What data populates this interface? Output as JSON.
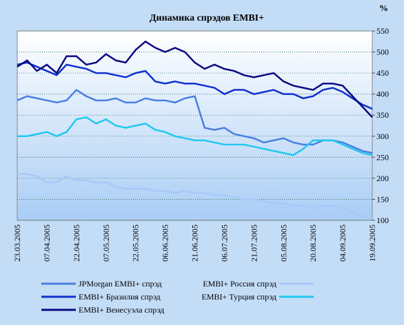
{
  "chart_data": {
    "type": "line",
    "title": "Динамика спрэдов EMBI+",
    "y_axis_label": "%",
    "categories": [
      "23.03.2005",
      null,
      null,
      "07.04.2005",
      null,
      null,
      "22.04.2005",
      null,
      null,
      "07.05.2005",
      null,
      null,
      "22.05.2005",
      null,
      null,
      "06.06.2005",
      null,
      null,
      "21.06.2005",
      null,
      null,
      "06.07.2005",
      null,
      null,
      "21.07.2005",
      null,
      null,
      "05.08.2005",
      null,
      null,
      "20.08.2005",
      null,
      null,
      "04.09.2005",
      null,
      null,
      "19.09.2005"
    ],
    "series": [
      {
        "name": "JPMorgan EMBI+ спрэд",
        "color": "#4a7fe0",
        "values": [
          385,
          395,
          390,
          385,
          380,
          385,
          410,
          395,
          385,
          385,
          390,
          380,
          380,
          390,
          385,
          385,
          380,
          390,
          395,
          320,
          315,
          320,
          305,
          300,
          295,
          285,
          290,
          295,
          285,
          280,
          280,
          290,
          290,
          285,
          275,
          265,
          260
        ]
      },
      {
        "name": "EMBI+ Россия спрэд",
        "color": "#a8c8f8",
        "values": [
          210,
          210,
          205,
          190,
          190,
          205,
          195,
          195,
          190,
          190,
          180,
          175,
          175,
          175,
          170,
          170,
          165,
          170,
          165,
          165,
          160,
          160,
          155,
          150,
          150,
          145,
          140,
          140,
          135,
          135,
          130,
          135,
          135,
          130,
          120,
          110,
          105
        ]
      },
      {
        "name": "EMBI+ Бразилия спрэд",
        "color": "#1030d0",
        "values": [
          470,
          475,
          465,
          455,
          445,
          470,
          465,
          460,
          450,
          450,
          445,
          440,
          450,
          455,
          430,
          425,
          430,
          425,
          425,
          420,
          415,
          400,
          410,
          410,
          400,
          405,
          410,
          400,
          400,
          390,
          395,
          410,
          415,
          405,
          390,
          375,
          365
        ]
      },
      {
        "name": "EMBI+ Турция спрэд",
        "color": "#20c8f0",
        "values": [
          300,
          300,
          305,
          310,
          300,
          310,
          340,
          345,
          330,
          340,
          325,
          320,
          325,
          330,
          315,
          310,
          300,
          295,
          290,
          290,
          285,
          280,
          280,
          280,
          275,
          270,
          265,
          260,
          255,
          270,
          290,
          290,
          290,
          280,
          270,
          260,
          255
        ]
      },
      {
        "name": "EMBI+ Венесуэла спрэд",
        "color": "#0a0a80",
        "values": [
          465,
          480,
          455,
          470,
          450,
          490,
          490,
          470,
          475,
          495,
          480,
          475,
          505,
          525,
          510,
          500,
          510,
          500,
          475,
          460,
          470,
          460,
          455,
          445,
          440,
          445,
          450,
          430,
          420,
          415,
          410,
          425,
          425,
          420,
          395,
          370,
          345
        ]
      }
    ],
    "ylim": [
      100,
      550
    ],
    "yticks": [
      100,
      150,
      200,
      250,
      300,
      350,
      400,
      450,
      500,
      550
    ],
    "grid": true
  }
}
